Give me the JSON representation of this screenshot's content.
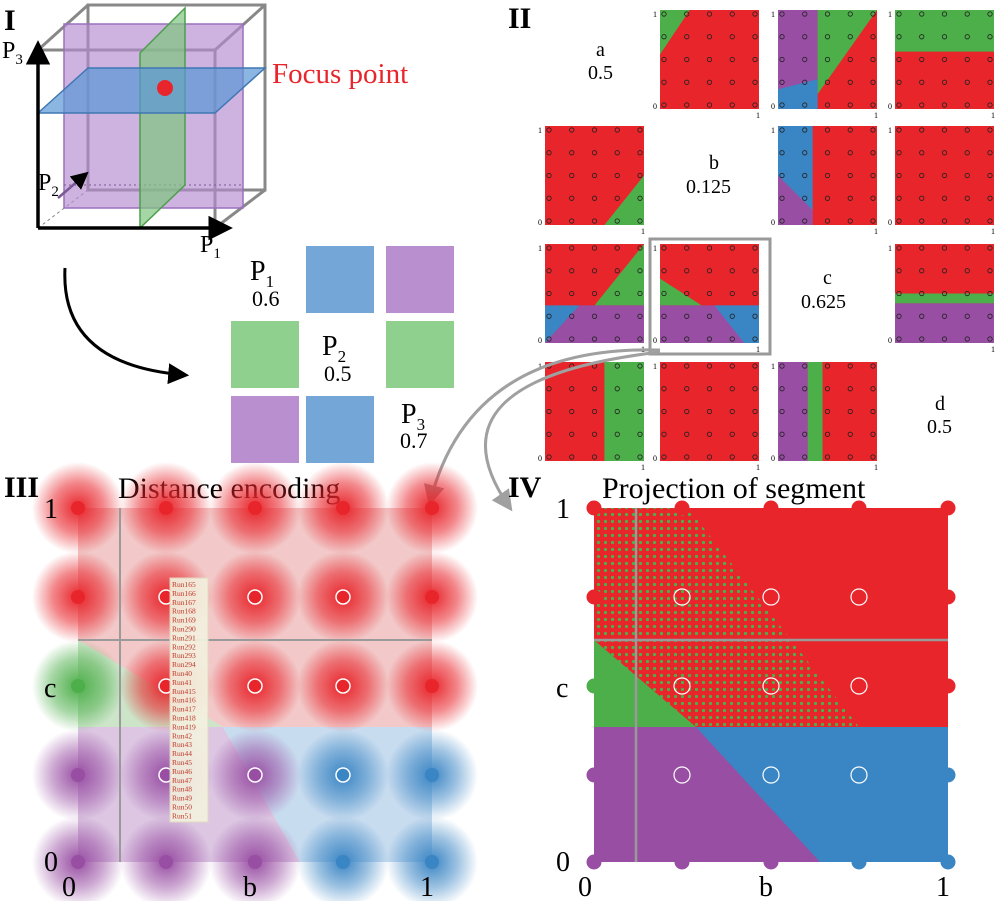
{
  "panels": {
    "I": {
      "numeral": "I",
      "focus_label": "Focus point",
      "axes": [
        {
          "base": "P",
          "sub": "3"
        },
        {
          "base": "P",
          "sub": "2"
        },
        {
          "base": "P",
          "sub": "1"
        }
      ]
    },
    "mini": {
      "params": [
        {
          "base": "P",
          "sub": "1",
          "value": "0.6"
        },
        {
          "base": "P",
          "sub": "2",
          "value": "0.5"
        },
        {
          "base": "P",
          "sub": "3",
          "value": "0.7"
        }
      ]
    },
    "II": {
      "numeral": "II",
      "diag": [
        {
          "letter": "a",
          "value": "0.5"
        },
        {
          "letter": "b",
          "value": "0.125"
        },
        {
          "letter": "c",
          "value": "0.625"
        },
        {
          "letter": "d",
          "value": "0.5"
        }
      ],
      "tick_zero": "0",
      "tick_one": "1"
    },
    "III": {
      "numeral": "III",
      "title": "Distance encoding",
      "y_ticks": [
        "1",
        "c",
        "0"
      ],
      "x_ticks": [
        "0",
        "b",
        "1"
      ],
      "run_labels": [
        "Run165",
        "Run166",
        "Run167",
        "Run168",
        "Run169",
        "Run290",
        "Run291",
        "Run292",
        "Run293",
        "Run294",
        "Run40",
        "Run41",
        "Run415",
        "Run416",
        "Run417",
        "Run418",
        "Run419",
        "Run42",
        "Run43",
        "Run44",
        "Run45",
        "Run46",
        "Run47",
        "Run48",
        "Run49",
        "Run50",
        "Run51"
      ]
    },
    "IV": {
      "numeral": "IV",
      "title": "Projection  of segment",
      "y_ticks": [
        "1",
        "c",
        "0"
      ],
      "x_ticks": [
        "0",
        "b",
        "1"
      ]
    }
  },
  "colors": {
    "red": "#e8252b",
    "green": "#4daf4a",
    "blue": "#3a85c4",
    "purple": "#984ea3",
    "focus": "#e8252b",
    "plane_purple": "#b48ad0",
    "plane_green": "#7fc47f",
    "plane_blue": "#5b97d6",
    "mini_green": "#8fd08f",
    "mini_blue": "#74a7d8",
    "mini_purple": "#b98fcf",
    "grey_line": "#9a9a9a",
    "arrow_grey": "#a0a0a0"
  }
}
